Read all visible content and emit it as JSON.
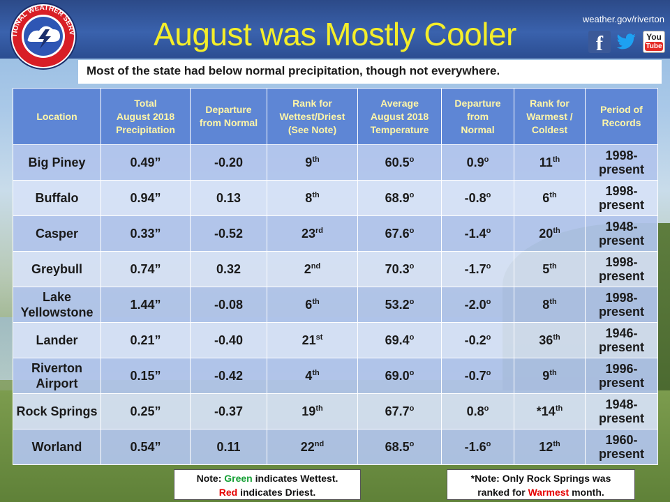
{
  "header": {
    "title": "August was Mostly Cooler",
    "website": "weather.gov/riverton",
    "logo_text": "NATIONAL WEATHER SERVICE",
    "social_icons": [
      "facebook-icon",
      "twitter-icon",
      "youtube-icon"
    ],
    "youtube_label_top": "You",
    "youtube_label_bottom": "Tube",
    "facebook_glyph": "f"
  },
  "subtitle": "Most of the state had below normal precipitation, though not everywhere.",
  "colors": {
    "header_bg": "#3a62ad",
    "title": "#f4ee2a",
    "table_header_bg": "#5e86d5",
    "table_header_text": "#fff6a8",
    "red": "#e60000",
    "green": "#16a035",
    "blue": "#1d3ae0"
  },
  "table": {
    "headers": [
      [
        "Location"
      ],
      [
        "Total",
        "August 2018",
        "Precipitation"
      ],
      [
        "Departure",
        "from Normal"
      ],
      [
        "Rank for",
        "Wettest/Driest",
        "(See Note)"
      ],
      [
        "Average",
        "August 2018",
        "Temperature"
      ],
      [
        "Departure",
        "from",
        "Normal"
      ],
      [
        "Rank for",
        "Warmest /",
        "Coldest"
      ],
      [
        "Period of",
        "Records"
      ]
    ],
    "rows": [
      {
        "location": [
          "Big Piney"
        ],
        "precip": "0.49”",
        "precip_dep": "-0.20",
        "precip_dep_color": "red",
        "precip_rank_num": "9",
        "precip_rank_suffix": "th",
        "precip_rank_color": "red",
        "temp": "60.5",
        "temp_dep": "0.9",
        "temp_dep_color": "black",
        "temp_rank_prefix": "",
        "temp_rank_num": "11",
        "temp_rank_suffix": "th",
        "temp_rank_color": "black",
        "period": [
          "1998-",
          "present"
        ]
      },
      {
        "location": [
          "Buffalo"
        ],
        "precip": "0.94”",
        "precip_dep": "0.13",
        "precip_dep_color": "black",
        "precip_rank_num": "8",
        "precip_rank_suffix": "th",
        "precip_rank_color": "green",
        "temp": "68.9",
        "temp_dep": "-0.8",
        "temp_dep_color": "blue",
        "temp_rank_prefix": "",
        "temp_rank_num": "6",
        "temp_rank_suffix": "th",
        "temp_rank_color": "black",
        "period": [
          "1998-",
          "present"
        ]
      },
      {
        "location": [
          "Casper"
        ],
        "precip": "0.33”",
        "precip_dep": "-0.52",
        "precip_dep_color": "red",
        "precip_rank_num": "23",
        "precip_rank_suffix": "rd",
        "precip_rank_color": "red",
        "temp": "67.6",
        "temp_dep": "-1.4",
        "temp_dep_color": "blue",
        "temp_rank_prefix": "",
        "temp_rank_num": "20",
        "temp_rank_suffix": "th",
        "temp_rank_color": "black",
        "period": [
          "1948-",
          "present"
        ]
      },
      {
        "location": [
          "Greybull"
        ],
        "precip": "0.74”",
        "precip_dep": "0.32",
        "precip_dep_color": "black",
        "precip_rank_num": "2",
        "precip_rank_suffix": "nd",
        "precip_rank_color": "green",
        "temp": "70.3",
        "temp_dep": "-1.7",
        "temp_dep_color": "blue",
        "temp_rank_prefix": "",
        "temp_rank_num": "5",
        "temp_rank_suffix": "th",
        "temp_rank_color": "black",
        "period": [
          "1998-",
          "present"
        ]
      },
      {
        "location": [
          "Lake",
          "Yellowstone"
        ],
        "precip": "1.44”",
        "precip_dep": "-0.08",
        "precip_dep_color": "red",
        "precip_rank_num": "6",
        "precip_rank_suffix": "th",
        "precip_rank_color": "green",
        "temp": "53.2",
        "temp_dep": "-2.0",
        "temp_dep_color": "blue",
        "temp_rank_prefix": "",
        "temp_rank_num": "8",
        "temp_rank_suffix": "th",
        "temp_rank_color": "black",
        "period": [
          "1998-",
          "present"
        ]
      },
      {
        "location": [
          "Lander"
        ],
        "precip": "0.21”",
        "precip_dep": "-0.40",
        "precip_dep_color": "red",
        "precip_rank_num": "21",
        "precip_rank_suffix": "st",
        "precip_rank_color": "red",
        "temp": "69.4",
        "temp_dep": "-0.2",
        "temp_dep_color": "blue",
        "temp_rank_prefix": "",
        "temp_rank_num": "36",
        "temp_rank_suffix": "th",
        "temp_rank_color": "black",
        "period": [
          "1946-",
          "present"
        ]
      },
      {
        "location": [
          "Riverton",
          "Airport"
        ],
        "precip": "0.15”",
        "precip_dep": "-0.42",
        "precip_dep_color": "red",
        "precip_rank_num": "4",
        "precip_rank_suffix": "th",
        "precip_rank_color": "red",
        "temp": "69.0",
        "temp_dep": "-0.7",
        "temp_dep_color": "blue",
        "temp_rank_prefix": "",
        "temp_rank_num": "9",
        "temp_rank_suffix": "th",
        "temp_rank_color": "black",
        "period": [
          "1996-",
          "present"
        ]
      },
      {
        "location": [
          "Rock Springs"
        ],
        "precip": "0.25”",
        "precip_dep": "-0.37",
        "precip_dep_color": "red",
        "precip_rank_num": "19",
        "precip_rank_suffix": "th",
        "precip_rank_color": "red",
        "temp": "67.7",
        "temp_dep": "0.8",
        "temp_dep_color": "black",
        "temp_rank_prefix": "*",
        "temp_rank_num": "14",
        "temp_rank_suffix": "th",
        "temp_rank_color": "red",
        "period": [
          "1948-",
          "present"
        ]
      },
      {
        "location": [
          "Worland"
        ],
        "precip": "0.54”",
        "precip_dep": "0.11",
        "precip_dep_color": "black",
        "precip_rank_num": "22",
        "precip_rank_suffix": "nd",
        "precip_rank_color": "green",
        "temp": "68.5",
        "temp_dep": "-1.6",
        "temp_dep_color": "blue",
        "temp_rank_prefix": "",
        "temp_rank_num": "12",
        "temp_rank_suffix": "th",
        "temp_rank_color": "black",
        "period": [
          "1960-",
          "present"
        ]
      }
    ],
    "degree_symbol": "o"
  },
  "notes": {
    "left": {
      "prefix": "Note: ",
      "green_word": "Green",
      "green_rest": " indicates Wettest.",
      "red_word": "Red",
      "red_rest": " indicates Driest."
    },
    "right": {
      "prefix": "*Note:",
      "line1_rest": " Only Rock Springs was",
      "line2_pre": "ranked for ",
      "red_word": "Warmest",
      "line2_post": " month."
    }
  }
}
